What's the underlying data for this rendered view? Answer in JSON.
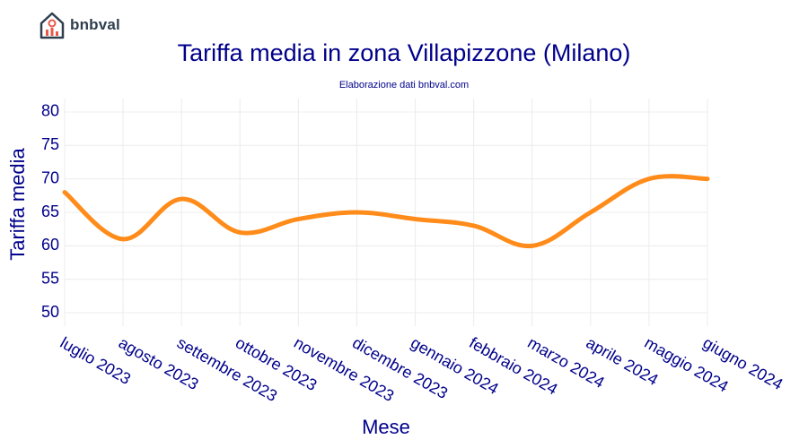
{
  "brand": {
    "name": "bnbval",
    "icon": "house-chart-icon"
  },
  "chart_data": {
    "type": "line",
    "title": "Tariffa media in zona Villapizzone (Milano)",
    "subtitle": "Elaborazione dati bnbval.com",
    "xlabel": "Mese",
    "ylabel": "Tariffa media",
    "categories": [
      "luglio 2023",
      "agosto 2023",
      "settembre 2023",
      "ottobre 2023",
      "novembre 2023",
      "dicembre 2023",
      "gennaio 2024",
      "febbraio 2024",
      "marzo 2024",
      "aprile 2024",
      "maggio 2024",
      "giugno 2024"
    ],
    "series": [
      {
        "values": [
          68,
          61,
          67,
          62,
          64,
          65,
          64,
          63,
          60,
          65,
          70,
          70
        ],
        "color": "#ff8c1a"
      }
    ],
    "yticks": [
      50,
      55,
      60,
      65,
      70,
      75,
      80
    ],
    "ylim": [
      48,
      82
    ],
    "grid": true,
    "legend": "none"
  }
}
